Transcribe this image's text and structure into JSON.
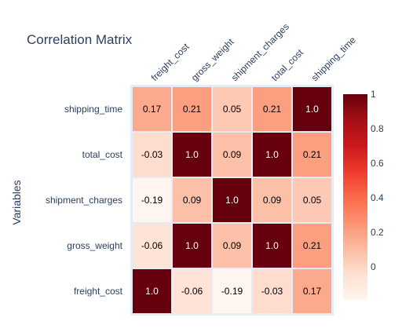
{
  "chart_data": {
    "type": "heatmap",
    "title": "Correlation Matrix",
    "ylabel": "Variables",
    "xlabel": "",
    "x_categories": [
      "freight_cost",
      "gross_weight",
      "shipment_charges",
      "total_cost",
      "shipping_time"
    ],
    "y_categories": [
      "shipping_time",
      "total_cost",
      "shipment_charges",
      "gross_weight",
      "freight_cost"
    ],
    "values": [
      [
        0.17,
        0.21,
        0.05,
        0.21,
        1.0
      ],
      [
        -0.03,
        1.0,
        0.09,
        1.0,
        0.21
      ],
      [
        -0.19,
        0.09,
        1.0,
        0.09,
        0.05
      ],
      [
        -0.06,
        1.0,
        0.09,
        1.0,
        0.21
      ],
      [
        1.0,
        -0.06,
        -0.19,
        -0.03,
        0.17
      ]
    ],
    "labels": [
      [
        "0.17",
        "0.21",
        "0.05",
        "0.21",
        "1.0"
      ],
      [
        "-0.03",
        "1.0",
        "0.09",
        "1.0",
        "0.21"
      ],
      [
        "-0.19",
        "0.09",
        "1.0",
        "0.09",
        "0.05"
      ],
      [
        "-0.06",
        "1.0",
        "0.09",
        "1.0",
        "0.21"
      ],
      [
        "1.0",
        "-0.06",
        "-0.19",
        "-0.03",
        "0.17"
      ]
    ],
    "colorscale": "Reds",
    "zmin": -0.19,
    "zmax": 1.0,
    "colorbar_ticks": [
      0,
      0.2,
      0.4,
      0.6,
      0.8,
      1
    ],
    "colorbar_ticklabels": [
      "0",
      "0.2",
      "0.4",
      "0.6",
      "0.8",
      "1"
    ],
    "x_tick_position": "top",
    "legend": "colorbar-right"
  },
  "colors": {
    "plot_background": "#e5ecf6",
    "text_dark": "#000000",
    "text_light": "#ffffff",
    "scale_low": "#fff5f0",
    "scale_high": "#67000d"
  }
}
